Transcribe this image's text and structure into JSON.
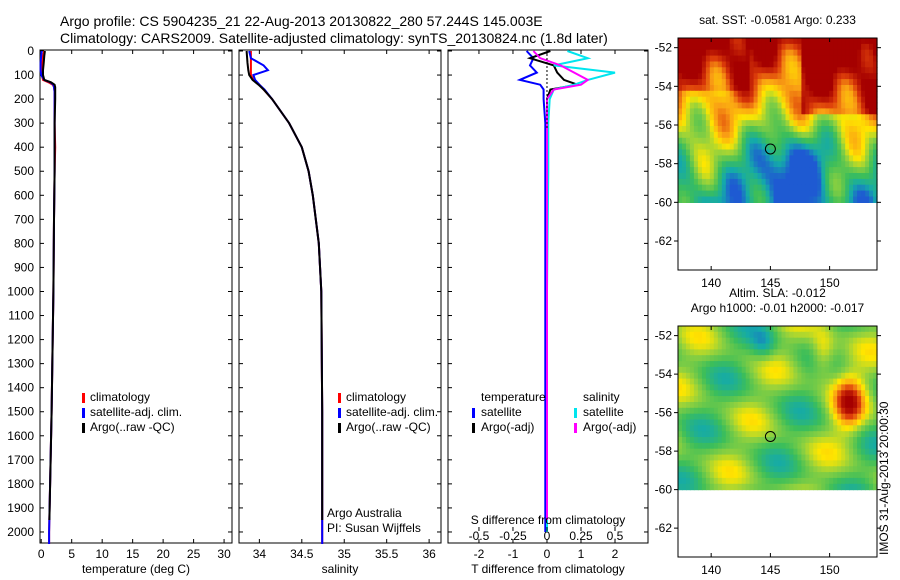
{
  "header": {
    "line1": "Argo profile: CS 5904235_21 22-Aug-2013 20130822_280 57.244S 145.003E",
    "line2": "Climatology: CARS2009. Satellite-adjusted climatology: synTS_20130824.nc (1.8d later)"
  },
  "footer_stamp": "IMOS 31-Aug-2013 20:00:30",
  "colors": {
    "climatology": "#ff0000",
    "satellite": "#0000ff",
    "argo": "#000000",
    "sal_satellite": "#00e5ee",
    "sal_argo": "#ff00ff"
  },
  "chart_data": [
    {
      "type": "line",
      "id": "temperature",
      "xlabel": "temperature (deg C)",
      "xlim": [
        -0.2,
        31.3
      ],
      "xticks": [
        "0",
        "5",
        "10",
        "15",
        "20",
        "25",
        "30"
      ],
      "xtick_values": [
        0,
        5,
        10,
        15,
        20,
        25,
        30
      ],
      "ylim": [
        0,
        2050
      ],
      "yticks": [
        "0",
        "100",
        "200",
        "300",
        "400",
        "500",
        "600",
        "700",
        "800",
        "900",
        "1000",
        "1100",
        "1200",
        "1300",
        "1400",
        "1500",
        "1600",
        "1700",
        "1800",
        "1900",
        "2000"
      ],
      "ytick_values": [
        0,
        100,
        200,
        300,
        400,
        500,
        600,
        700,
        800,
        900,
        1000,
        1100,
        1200,
        1300,
        1400,
        1500,
        1600,
        1700,
        1800,
        1900,
        2000
      ],
      "legend": [
        "climatology",
        "satellite-adj. clim.",
        "Argo(..raw -QC)"
      ],
      "series": [
        {
          "name": "climatology",
          "color": "#ff0000",
          "depth": [
            0,
            20,
            50,
            80,
            100,
            120,
            130,
            140,
            150,
            170,
            200,
            300,
            400,
            500,
            700,
            1000,
            1500,
            2000,
            2050
          ],
          "values": [
            0.5,
            0.3,
            0.2,
            0.1,
            0.1,
            0.3,
            1.2,
            1.9,
            2.1,
            2.2,
            2.2,
            2.2,
            2.3,
            2.2,
            2.1,
            2.0,
            1.7,
            1.3,
            1.3
          ]
        },
        {
          "name": "satellite-adj. clim.",
          "color": "#0000ff",
          "depth": [
            0,
            20,
            50,
            80,
            100,
            120,
            130,
            140,
            150,
            170,
            200,
            300,
            400,
            500,
            700,
            1000,
            1500,
            2000,
            2050
          ],
          "values": [
            0.1,
            0.0,
            -0.1,
            -0.1,
            0.0,
            0.5,
            1.5,
            2.0,
            2.1,
            2.2,
            2.2,
            2.2,
            2.2,
            2.2,
            2.1,
            2.0,
            1.7,
            1.3,
            1.3
          ]
        },
        {
          "name": "Argo(..raw -QC)",
          "color": "#000000",
          "depth": [
            0,
            20,
            50,
            80,
            100,
            120,
            130,
            140,
            150,
            170,
            200,
            300,
            400,
            500,
            700,
            1000,
            1500,
            1950
          ],
          "values": [
            0.6,
            0.5,
            0.4,
            0.3,
            0.3,
            0.5,
            1.6,
            2.2,
            2.3,
            2.3,
            2.3,
            2.2,
            2.2,
            2.2,
            2.1,
            2.0,
            1.7,
            1.35
          ]
        }
      ]
    },
    {
      "type": "line",
      "id": "salinity",
      "xlabel": "salinity",
      "xlim": [
        33.76,
        36.14
      ],
      "xticks": [
        "34",
        "34.5",
        "35",
        "35.5",
        "36"
      ],
      "xtick_values": [
        34,
        34.5,
        35,
        35.5,
        36
      ],
      "ylim": [
        0,
        2050
      ],
      "legend": [
        "climatology",
        "satellite-adj. clim.",
        "Argo(..raw -QC)"
      ],
      "annotation": [
        "Argo Australia",
        "PI: Susan Wijffels"
      ],
      "series": [
        {
          "name": "climatology",
          "color": "#ff0000",
          "depth": [
            0,
            50,
            80,
            100,
            120,
            140,
            160,
            200,
            300,
            400,
            500,
            600,
            800,
            1000,
            1500,
            2000,
            2050
          ],
          "values": [
            33.9,
            33.9,
            33.9,
            33.9,
            33.93,
            34.0,
            34.05,
            34.15,
            34.35,
            34.5,
            34.58,
            34.63,
            34.7,
            34.73,
            34.74,
            34.74,
            34.74
          ]
        },
        {
          "name": "satellite-adj. clim.",
          "color": "#0000ff",
          "depth": [
            0,
            30,
            60,
            80,
            100,
            120,
            140,
            160,
            200,
            300,
            400,
            500,
            600,
            800,
            1000,
            1500,
            2000,
            2050
          ],
          "values": [
            33.88,
            33.9,
            34.05,
            34.1,
            33.93,
            33.95,
            34.0,
            34.06,
            34.15,
            34.35,
            34.5,
            34.58,
            34.63,
            34.7,
            34.73,
            34.74,
            34.74,
            34.74
          ]
        },
        {
          "name": "Argo(..raw -QC)",
          "color": "#000000",
          "depth": [
            0,
            50,
            80,
            100,
            120,
            140,
            160,
            200,
            300,
            400,
            500,
            600,
            800,
            1000,
            1500,
            1950
          ],
          "values": [
            33.85,
            33.86,
            33.87,
            33.88,
            33.92,
            33.99,
            34.05,
            34.15,
            34.35,
            34.5,
            34.58,
            34.63,
            34.7,
            34.73,
            34.74,
            34.74
          ]
        }
      ]
    },
    {
      "type": "line",
      "id": "difference",
      "xlabel": "T difference from climatology",
      "xlabel2": "S difference from climatology",
      "xlim": [
        -2.91,
        2.97
      ],
      "xticks": [
        "-2",
        "-1",
        "0",
        "1",
        "2"
      ],
      "xtick_values": [
        -2,
        -1,
        0,
        1,
        2
      ],
      "s_xticks": [
        "-0.5",
        "-0.25",
        "0",
        "0.25",
        "0.5"
      ],
      "s_xtick_values": [
        -0.5,
        -0.25,
        0,
        0.25,
        0.5
      ],
      "legend_headers": [
        "temperature",
        "salinity"
      ],
      "legend": [
        "satellite",
        "Argo(-adj)",
        "satellite",
        "Argo(-adj)"
      ],
      "series": [
        {
          "name": "temperature satellite",
          "color": "#0000ff",
          "unit": "T",
          "depth": [
            0,
            30,
            60,
            90,
            120,
            140,
            160,
            200,
            300,
            500,
            1000,
            2000
          ],
          "values": [
            -0.6,
            -0.4,
            -0.5,
            -0.3,
            -0.8,
            -0.2,
            -0.1,
            -0.1,
            -0.05,
            -0.05,
            -0.05,
            -0.05
          ]
        },
        {
          "name": "temperature Argo(-adj)",
          "color": "#000000",
          "unit": "T",
          "depth": [
            0,
            30,
            60,
            90,
            120,
            140,
            160,
            200,
            300,
            600,
            1150
          ],
          "values": [
            0.1,
            -0.5,
            0.2,
            0.3,
            0.5,
            0.9,
            0.1,
            0.0,
            0.0,
            0.0,
            0.0
          ]
        },
        {
          "name": "salinity satellite",
          "color": "#00e5ee",
          "unit": "S",
          "depth": [
            0,
            30,
            60,
            90,
            120,
            140,
            160,
            200,
            300,
            500,
            1000,
            2000
          ],
          "values": [
            0.15,
            0.3,
            0.05,
            0.5,
            0.3,
            0.2,
            0.05,
            0.02,
            0.01,
            0.01,
            0.0,
            0.0
          ]
        },
        {
          "name": "salinity Argo(-adj)",
          "color": "#ff00ff",
          "unit": "S",
          "depth": [
            0,
            30,
            60,
            90,
            120,
            140,
            160,
            200,
            300,
            500,
            1000,
            1950
          ],
          "values": [
            -0.1,
            -0.05,
            0.1,
            0.2,
            0.3,
            0.25,
            0.05,
            0.0,
            0.0,
            0.0,
            0.0,
            0.0
          ]
        }
      ]
    },
    {
      "type": "heatmap",
      "id": "sst_map",
      "title": "sat. SST: -0.0581  Argo: 0.233",
      "xticks": [
        "140",
        "145",
        "150"
      ],
      "xtick_values": [
        140,
        145,
        150
      ],
      "yticks": [
        "-52",
        "-54",
        "-56",
        "-58",
        "-60",
        "-62"
      ],
      "ytick_values": [
        -52,
        -54,
        -56,
        -58,
        -60,
        -62
      ],
      "xlim": [
        137.2,
        154.0
      ],
      "ylim": [
        -63.5,
        -51.5
      ],
      "marker": {
        "lon": 145.0,
        "lat": -57.24
      }
    },
    {
      "type": "heatmap",
      "id": "sla_map",
      "title": "Altim. SLA: -0.012",
      "subtitle": "Argo h1000: -0.01 h2000: -0.017",
      "xticks": [
        "140",
        "145",
        "150"
      ],
      "xtick_values": [
        140,
        145,
        150
      ],
      "yticks": [
        "-52",
        "-54",
        "-56",
        "-58",
        "-60",
        "-62"
      ],
      "ytick_values": [
        -52,
        -54,
        -56,
        -58,
        -60,
        -62
      ],
      "xlim": [
        137.2,
        154.0
      ],
      "ylim": [
        -63.5,
        -51.5
      ],
      "marker": {
        "lon": 145.0,
        "lat": -57.24
      }
    }
  ]
}
